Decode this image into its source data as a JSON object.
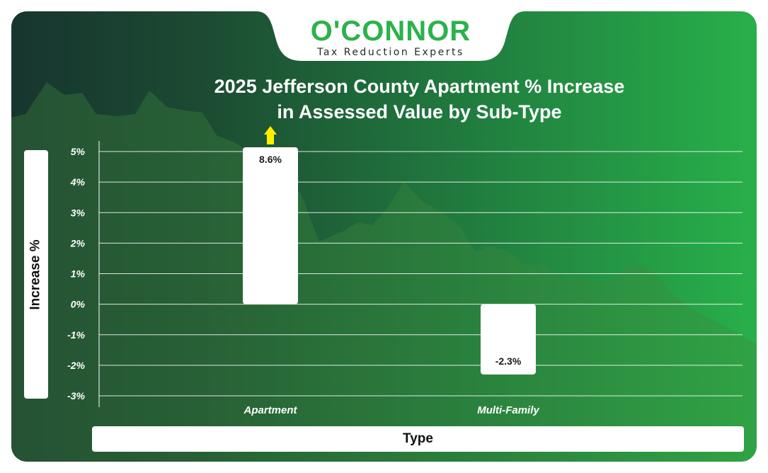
{
  "logo": {
    "name": "O'CONNOR",
    "tagline": "Tax Reduction Experts"
  },
  "chart_data": {
    "type": "bar",
    "title": "2025 Jefferson County Apartment % Increase in Assessed Value by Sub-Type",
    "title_lines": [
      "2025 Jefferson County Apartment % Increase",
      "in Assessed Value by Sub-Type"
    ],
    "xlabel": "Type",
    "ylabel": "Increase %",
    "categories": [
      "Apartment",
      "Multi-Family"
    ],
    "values": [
      8.6,
      -2.3
    ],
    "data_labels": [
      "8.6%",
      "-2.3%"
    ],
    "ylim": [
      -3,
      5
    ],
    "yticks": [
      "5%",
      "4%",
      "3%",
      "2%",
      "1%",
      "0%",
      "-1%",
      "-2%",
      "-3%"
    ],
    "truncated_indicator": "arrow-up on Apartment bar (value exceeds axis max)",
    "grid": "horizontal",
    "colors": {
      "bar": "#ffffff",
      "arrow": "#ffee00",
      "accent": "#2bb24c"
    }
  }
}
